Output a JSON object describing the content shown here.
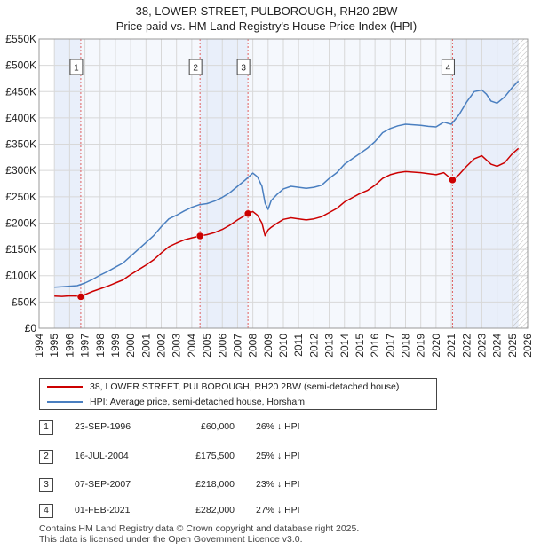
{
  "chart_data": {
    "type": "line",
    "title": "38, LOWER STREET, PULBOROUGH, RH20 2BW",
    "subtitle": "Price paid vs. HM Land Registry's House Price Index (HPI)",
    "xlim": [
      1994,
      2026
    ],
    "ylim": [
      0,
      550000
    ],
    "y_ticks": [
      0,
      50000,
      100000,
      150000,
      200000,
      250000,
      300000,
      350000,
      400000,
      450000,
      500000,
      550000
    ],
    "y_tick_labels": [
      "£0",
      "£50K",
      "£100K",
      "£150K",
      "£200K",
      "£250K",
      "£300K",
      "£350K",
      "£400K",
      "£450K",
      "£500K",
      "£550K"
    ],
    "x_ticks": [
      1994,
      1995,
      1996,
      1997,
      1998,
      1999,
      2000,
      2001,
      2002,
      2003,
      2004,
      2005,
      2006,
      2007,
      2008,
      2009,
      2010,
      2011,
      2012,
      2013,
      2014,
      2015,
      2016,
      2017,
      2018,
      2019,
      2020,
      2021,
      2022,
      2023,
      2024,
      2025,
      2026
    ],
    "x_tick_labels": [
      "1994",
      "1995",
      "1996",
      "1997",
      "1998",
      "1999",
      "2000",
      "2001",
      "2002",
      "2003",
      "2004",
      "2005",
      "2006",
      "2007",
      "2008",
      "2009",
      "2010",
      "2011",
      "2012",
      "2013",
      "2014",
      "2015",
      "2016",
      "2017",
      "2018",
      "2019",
      "2020",
      "2021",
      "2022",
      "2023",
      "2024",
      "2025",
      "2026"
    ],
    "data_start": 1995,
    "data_end": 2025.4,
    "shaded_regions": [
      [
        1995,
        1996.73
      ],
      [
        2004.54,
        2007.68
      ],
      [
        2021.08,
        2025.4
      ]
    ],
    "hatched_after": 2025,
    "series": [
      {
        "name": "38, LOWER STREET, PULBOROUGH, RH20 2BW (semi-detached house)",
        "color": "#cc0000",
        "x": [
          1995,
          1995.5,
          1996,
          1996.5,
          1996.73,
          1997,
          1997.5,
          1998,
          1998.5,
          1999,
          1999.5,
          2000,
          2000.5,
          2001,
          2001.5,
          2002,
          2002.5,
          2003,
          2003.5,
          2004,
          2004.54,
          2005,
          2005.5,
          2006,
          2006.5,
          2007,
          2007.68,
          2008,
          2008.3,
          2008.6,
          2008.8,
          2009,
          2009.2,
          2009.6,
          2010,
          2010.5,
          2011,
          2011.5,
          2012,
          2012.5,
          2013,
          2013.5,
          2014,
          2014.5,
          2015,
          2015.5,
          2016,
          2016.5,
          2017,
          2017.5,
          2018,
          2018.5,
          2019,
          2019.5,
          2020,
          2020.5,
          2021.08,
          2021.5,
          2022,
          2022.5,
          2023,
          2023.3,
          2023.6,
          2024,
          2024.5,
          2025,
          2025.4
        ],
        "values": [
          61000,
          60500,
          61500,
          61000,
          60000,
          64000,
          70000,
          75000,
          80000,
          86000,
          92000,
          102000,
          111000,
          120000,
          130000,
          143000,
          155000,
          162000,
          168000,
          172000,
          175500,
          178000,
          182000,
          188000,
          196000,
          206000,
          218000,
          222000,
          215000,
          200000,
          176000,
          187000,
          192000,
          200000,
          207000,
          210000,
          208000,
          206000,
          208000,
          212000,
          220000,
          228000,
          240000,
          248000,
          256000,
          262000,
          272000,
          285000,
          292000,
          296000,
          298000,
          297000,
          296000,
          294000,
          292000,
          296000,
          282000,
          292000,
          308000,
          322000,
          328000,
          320000,
          312000,
          308000,
          315000,
          332000,
          342000
        ]
      },
      {
        "name": "HPI: Average price, semi-detached house, Horsham",
        "color": "#4a7fc0",
        "x": [
          1995,
          1995.5,
          1996,
          1996.5,
          1997,
          1997.5,
          1998,
          1998.5,
          1999,
          1999.5,
          2000,
          2000.5,
          2001,
          2001.5,
          2002,
          2002.5,
          2003,
          2003.5,
          2004,
          2004.5,
          2005,
          2005.5,
          2006,
          2006.5,
          2007,
          2007.5,
          2008,
          2008.3,
          2008.6,
          2008.8,
          2009,
          2009.2,
          2009.6,
          2010,
          2010.5,
          2011,
          2011.5,
          2012,
          2012.5,
          2013,
          2013.5,
          2014,
          2014.5,
          2015,
          2015.5,
          2016,
          2016.5,
          2017,
          2017.5,
          2018,
          2018.5,
          2019,
          2019.5,
          2020,
          2020.5,
          2021,
          2021.5,
          2022,
          2022.5,
          2023,
          2023.3,
          2023.6,
          2024,
          2024.5,
          2025,
          2025.4
        ],
        "values": [
          78000,
          79000,
          80000,
          81000,
          86000,
          93000,
          101000,
          108000,
          116000,
          124000,
          137000,
          150000,
          163000,
          176000,
          193000,
          208000,
          215000,
          223000,
          230000,
          235000,
          237000,
          242000,
          249000,
          258000,
          270000,
          282000,
          295000,
          288000,
          270000,
          238000,
          226000,
          243000,
          255000,
          265000,
          270000,
          268000,
          266000,
          268000,
          272000,
          285000,
          296000,
          312000,
          322000,
          332000,
          342000,
          355000,
          372000,
          380000,
          385000,
          388000,
          387000,
          386000,
          384000,
          383000,
          392000,
          388000,
          406000,
          430000,
          450000,
          453000,
          445000,
          432000,
          428000,
          440000,
          458000,
          470000
        ]
      }
    ],
    "transactions": [
      {
        "id": "1",
        "date": "23-SEP-1996",
        "x": 1996.73,
        "price": 60000,
        "price_label": "£60,000",
        "hpi_diff": "26% ↓ HPI"
      },
      {
        "id": "2",
        "date": "16-JUL-2004",
        "x": 2004.54,
        "price": 175500,
        "price_label": "£175,500",
        "hpi_diff": "25% ↓ HPI"
      },
      {
        "id": "3",
        "date": "07-SEP-2007",
        "x": 2007.68,
        "price": 218000,
        "price_label": "£218,000",
        "hpi_diff": "23% ↓ HPI"
      },
      {
        "id": "4",
        "date": "01-FEB-2021",
        "x": 2021.08,
        "price": 282000,
        "price_label": "£282,000",
        "hpi_diff": "27% ↓ HPI"
      }
    ]
  },
  "legend": {
    "property_label": "38, LOWER STREET, PULBOROUGH, RH20 2BW (semi-detached house)",
    "hpi_label": "HPI: Average price, semi-detached house, Horsham"
  },
  "footer": {
    "line1": "Contains HM Land Registry data © Crown copyright and database right 2025.",
    "line2": "This data is licensed under the Open Government Licence v3.0."
  }
}
